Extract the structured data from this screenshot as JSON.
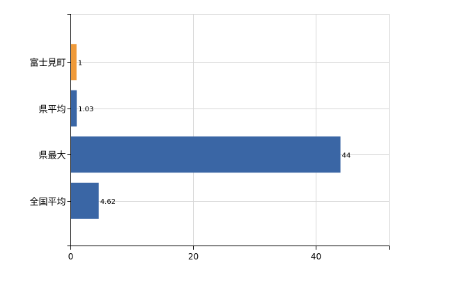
{
  "chart_data": {
    "type": "bar",
    "orientation": "horizontal",
    "categories": [
      "富士見町",
      "県平均",
      "県最大",
      "全国平均"
    ],
    "values": [
      1,
      1.03,
      44,
      4.62
    ],
    "data_labels": [
      "1",
      "1.03",
      "44",
      "4.62"
    ],
    "bar_colors": [
      "#ef9a3a",
      "#3a66a5",
      "#3a66a5",
      "#3a66a5"
    ],
    "xlim": [
      0,
      52
    ],
    "x_ticks": [
      0,
      20,
      40
    ],
    "x_tick_labels": [
      "0",
      "20",
      "40"
    ],
    "grid": true,
    "title": "",
    "xlabel": "",
    "ylabel": ""
  },
  "colors": {
    "highlight": "#ef9a3a",
    "bar": "#3a66a5",
    "grid": "#d6d6d6",
    "axis": "#000000"
  }
}
